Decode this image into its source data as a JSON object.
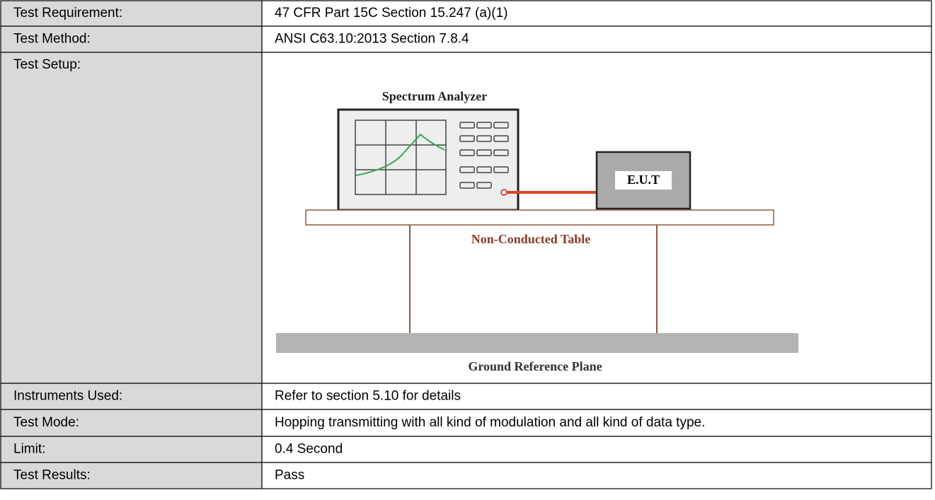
{
  "table": {
    "rows": [
      [
        "Test Requirement:",
        "47 CFR Part 15C Section 15.247 (a)(1)"
      ],
      [
        "Test Method:",
        "ANSI C63.10:2013 Section 7.8.4"
      ],
      [
        "Test Setup:"
      ],
      [
        "Instruments Used:",
        "Refer to section 5.10 for details"
      ],
      [
        "Test Mode:",
        "Hopping transmitting with all kind of modulation and all kind of data type."
      ],
      [
        "Limit:",
        "0.4 Second"
      ],
      [
        "Test Results:",
        "Pass"
      ]
    ]
  },
  "diagram": {
    "analyzer": "Spectrum Analyzer",
    "eut": "E.U.T",
    "table": "Non-Conducted Table",
    "ground": "Ground Reference Plane"
  }
}
